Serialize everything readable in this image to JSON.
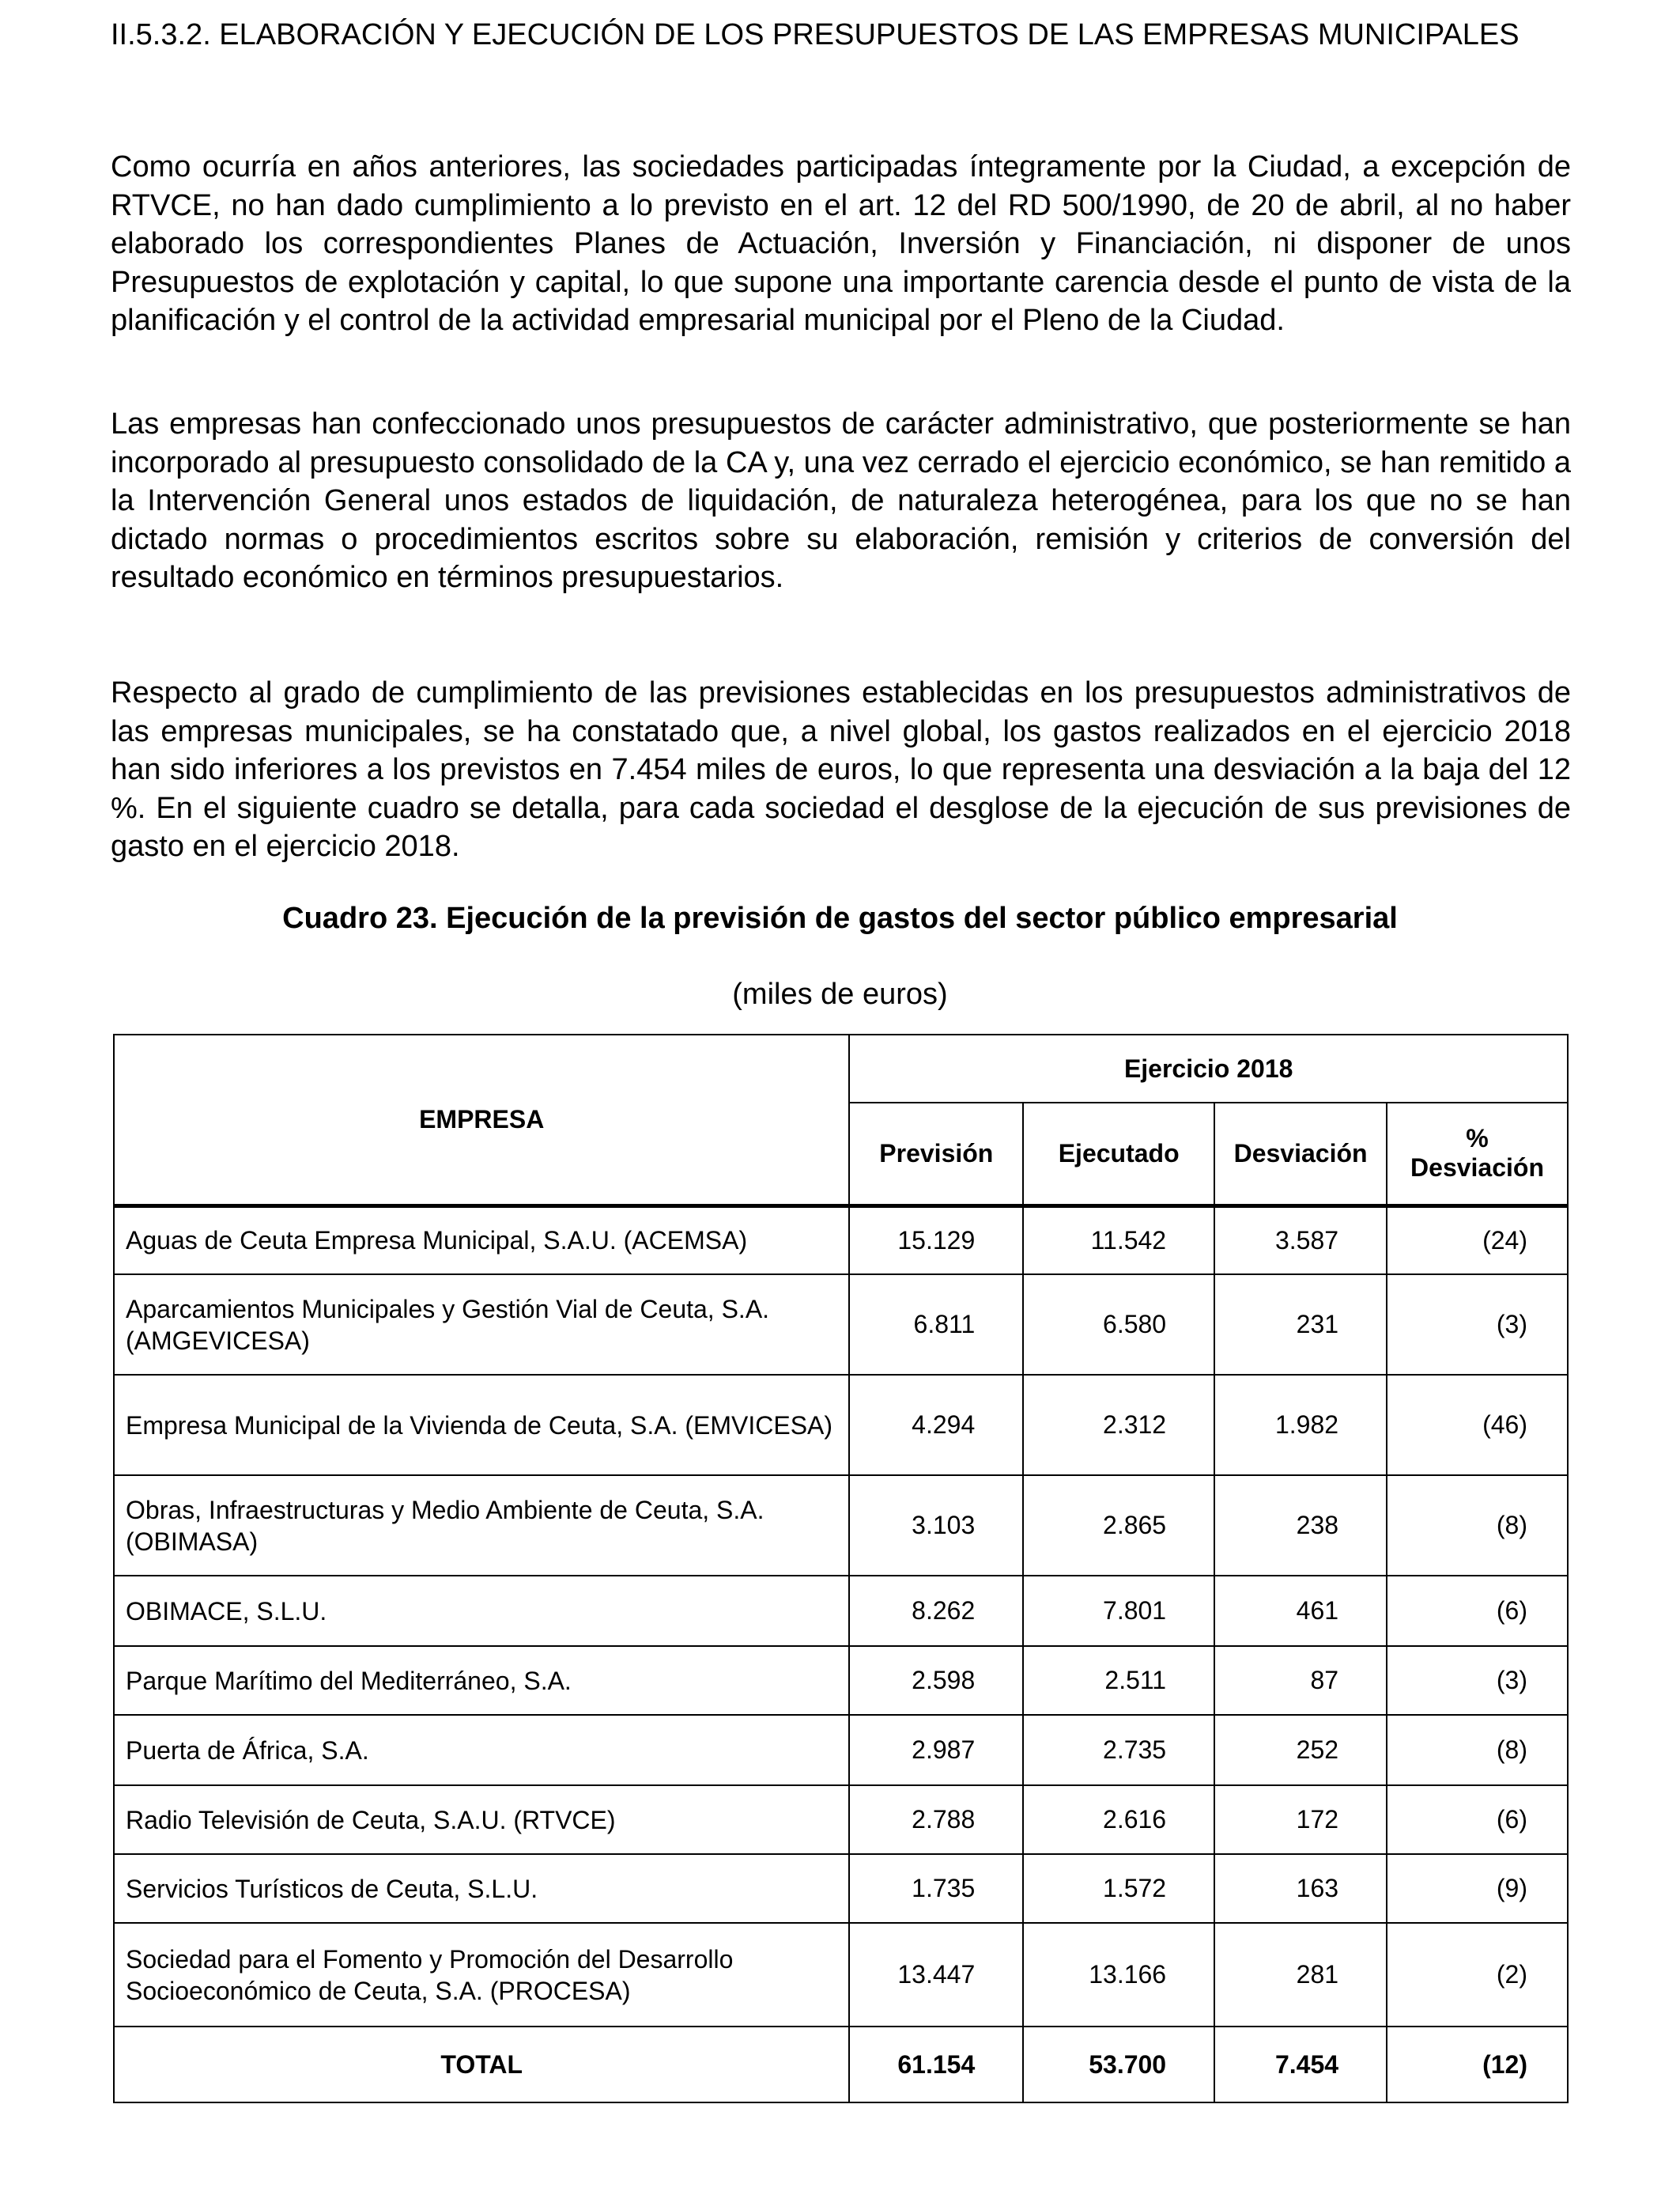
{
  "heading": "II.5.3.2. ELABORACIÓN Y EJECUCIÓN DE LOS PRESUPUESTOS DE LAS EMPRESAS MUNICIPALES",
  "paragraphs": [
    "Como ocurría en años anteriores, las sociedades participadas íntegramente por la Ciudad, a excepción de RTVCE, no han dado cumplimiento a lo previsto en el art. 12 del RD 500/1990, de 20 de abril, al no haber elaborado los correspondientes Planes de Actuación, Inversión y Financiación, ni disponer de unos Presupuestos de explotación y capital, lo que supone una importante carencia desde el punto de vista de la planificación y el control de la actividad empresarial municipal por el Pleno de la Ciudad.",
    "Las empresas han confeccionado unos presupuestos de carácter administrativo, que posteriormente se han incorporado al presupuesto consolidado de la CA y, una vez cerrado el ejercicio económico, se han remitido a la Intervención General unos estados de liquidación, de naturaleza heterogénea, para los que no se han dictado normas o procedimientos escritos sobre su elaboración, remisión y criterios de conversión del resultado económico en términos presupuestarios.",
    "Respecto al grado de cumplimiento de las previsiones establecidas en los presupuestos administrativos de las empresas municipales, se ha constatado que, a nivel global, los gastos realizados en el ejercicio 2018 han sido inferiores a los previstos en 7.454 miles de euros, lo que representa una desviación a la baja del 12 %. En el siguiente cuadro se detalla, para cada sociedad el desglose de la ejecución de sus previsiones de gasto en el ejercicio 2018."
  ],
  "table": {
    "caption": "Cuadro 23. Ejecución de la previsión de gastos del sector público empresarial",
    "units": "(miles de euros)",
    "header": {
      "empresa": "EMPRESA",
      "group": "Ejercicio 2018",
      "prevision": "Previsión",
      "ejecutado": "Ejecutado",
      "desviacion": "Desviación",
      "pct_symbol": "%",
      "pct_label": "Desviación"
    },
    "rows": [
      {
        "name": "Aguas de Ceuta Empresa Municipal, S.A.U. (ACEMSA)",
        "prevision": "15.129",
        "ejecutado": "11.542",
        "desviacion": "3.587",
        "pct": "(24)"
      },
      {
        "name": "Aparcamientos Municipales y Gestión Vial de Ceuta, S.A. (AMGEVICESA)",
        "prevision": "6.811",
        "ejecutado": "6.580",
        "desviacion": "231",
        "pct": "(3)"
      },
      {
        "name": "Empresa Municipal de la Vivienda de Ceuta, S.A. (EMVICESA)",
        "prevision": "4.294",
        "ejecutado": "2.312",
        "desviacion": "1.982",
        "pct": "(46)"
      },
      {
        "name": "Obras, Infraestructuras y Medio Ambiente de Ceuta, S.A. (OBIMASA)",
        "prevision": "3.103",
        "ejecutado": "2.865",
        "desviacion": "238",
        "pct": "(8)"
      },
      {
        "name": "OBIMACE, S.L.U.",
        "prevision": "8.262",
        "ejecutado": "7.801",
        "desviacion": "461",
        "pct": "(6)"
      },
      {
        "name": "Parque Marítimo del Mediterráneo, S.A.",
        "prevision": "2.598",
        "ejecutado": "2.511",
        "desviacion": "87",
        "pct": "(3)"
      },
      {
        "name": "Puerta de África, S.A.",
        "prevision": "2.987",
        "ejecutado": "2.735",
        "desviacion": "252",
        "pct": "(8)"
      },
      {
        "name": "Radio Televisión de Ceuta, S.A.U. (RTVCE)",
        "prevision": "2.788",
        "ejecutado": "2.616",
        "desviacion": "172",
        "pct": "(6)"
      },
      {
        "name": "Servicios Turísticos de Ceuta, S.L.U.",
        "prevision": "1.735",
        "ejecutado": "1.572",
        "desviacion": "163",
        "pct": "(9)"
      },
      {
        "name": "Sociedad para el Fomento y Promoción del Desarrollo Socioeconómico de Ceuta, S.A. (PROCESA)",
        "prevision": "13.447",
        "ejecutado": "13.166",
        "desviacion": "281",
        "pct": "(2)"
      }
    ],
    "total": {
      "name": "TOTAL",
      "prevision": "61.154",
      "ejecutado": "53.700",
      "desviacion": "7.454",
      "pct": "(12)"
    }
  }
}
